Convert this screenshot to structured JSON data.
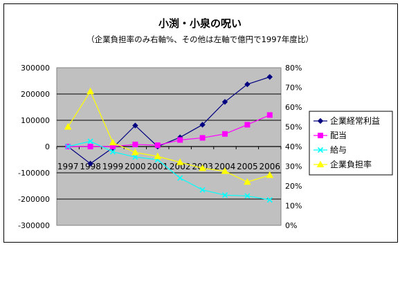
{
  "chart_data": {
    "type": "line",
    "title": "小渕・小泉の呪い",
    "subtitle": "（企業負担率のみ右軸%、その他は左軸で億円で1997年度比）",
    "categories": [
      "1997",
      "1998",
      "1999",
      "2000",
      "2001",
      "2002",
      "2003",
      "2004",
      "2005",
      "2006"
    ],
    "y_left": {
      "min": -300000,
      "max": 300000,
      "step": 100000,
      "ticks": [
        "300000",
        "200000",
        "100000",
        "0",
        "-100000",
        "-200000",
        "-300000"
      ]
    },
    "y_right": {
      "min": 0,
      "max": 80,
      "step": 10,
      "ticks": [
        "80%",
        "70%",
        "60%",
        "50%",
        "40%",
        "30%",
        "20%",
        "10%",
        "0%"
      ]
    },
    "grid": "horizontal",
    "legend_position": "right",
    "plot_background": "#c0c0c0",
    "series": [
      {
        "name": "企業経常利益",
        "axis": "left",
        "color": "#000080",
        "marker": "diamond",
        "values": [
          0,
          -65000,
          -5000,
          80000,
          0,
          35000,
          83000,
          170000,
          237000,
          265000
        ]
      },
      {
        "name": "配当",
        "axis": "left",
        "color": "#ff00ff",
        "marker": "square",
        "values": [
          0,
          0,
          0,
          8000,
          5000,
          25000,
          33000,
          48000,
          83000,
          120000
        ]
      },
      {
        "name": "給与",
        "axis": "left",
        "color": "#00ffff",
        "marker": "x",
        "values": [
          0,
          20000,
          -20000,
          -40000,
          -50000,
          -120000,
          -165000,
          -185000,
          -188000,
          -203000
        ]
      },
      {
        "name": "企業負担率",
        "axis": "right",
        "color": "#ffff00",
        "marker": "triangle",
        "values": [
          50,
          68,
          42,
          37,
          35,
          32,
          29,
          27.5,
          22,
          25.5
        ]
      }
    ]
  }
}
